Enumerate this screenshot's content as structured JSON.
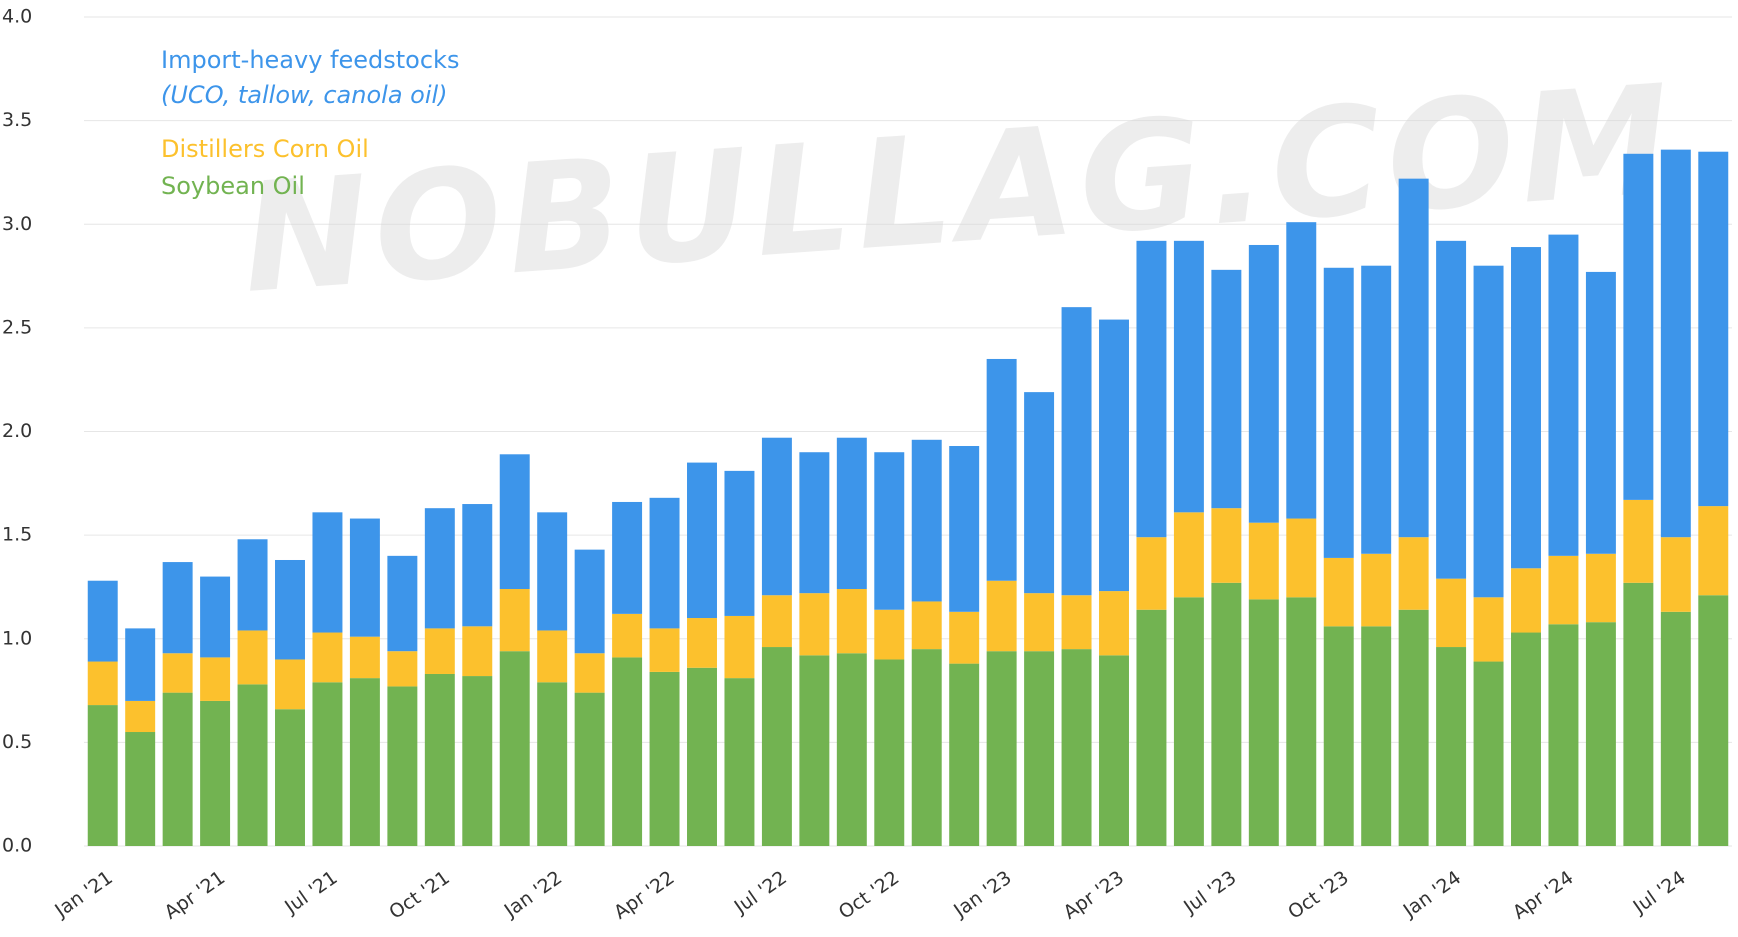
{
  "chart_data": {
    "type": "stacked_bar",
    "watermark": "NOBULLAG.COM",
    "categories": [
      "Jan '21",
      null,
      null,
      "Apr '21",
      null,
      null,
      "Jul '21",
      null,
      null,
      "Oct '21",
      null,
      null,
      "Jan '22",
      null,
      null,
      "Apr '22",
      null,
      null,
      "Jul '22",
      null,
      null,
      "Oct '22",
      null,
      null,
      "Jan '23",
      null,
      null,
      "Apr '23",
      null,
      null,
      "Jul '23",
      null,
      null,
      "Oct '23",
      null,
      null,
      "Jan '24",
      null,
      null,
      "Apr '24",
      null,
      null,
      "Jul '24",
      null
    ],
    "series": [
      {
        "name": "Soybean Oil",
        "color": "#72b351",
        "values": [
          0.68,
          0.55,
          0.74,
          0.7,
          0.78,
          0.66,
          0.79,
          0.81,
          0.77,
          0.83,
          0.82,
          0.94,
          0.79,
          0.74,
          0.91,
          0.84,
          0.86,
          0.81,
          0.96,
          0.92,
          0.93,
          0.9,
          0.95,
          0.88,
          0.94,
          0.94,
          0.95,
          0.92,
          1.14,
          1.2,
          1.27,
          1.19,
          1.2,
          1.06,
          1.06,
          1.14,
          0.96,
          0.89,
          1.03,
          1.07,
          1.08,
          1.27,
          1.13,
          1.21
        ]
      },
      {
        "name": "Distillers Corn Oil",
        "color": "#fcc12d",
        "values": [
          0.21,
          0.15,
          0.19,
          0.21,
          0.26,
          0.24,
          0.24,
          0.2,
          0.17,
          0.22,
          0.24,
          0.3,
          0.25,
          0.19,
          0.21,
          0.21,
          0.24,
          0.3,
          0.25,
          0.3,
          0.31,
          0.24,
          0.23,
          0.25,
          0.34,
          0.28,
          0.26,
          0.31,
          0.35,
          0.41,
          0.36,
          0.37,
          0.38,
          0.33,
          0.35,
          0.35,
          0.33,
          0.31,
          0.31,
          0.33,
          0.33,
          0.4,
          0.36,
          0.43
        ]
      },
      {
        "name": "Import-heavy feedstocks",
        "color": "#3d95ea",
        "values": [
          0.39,
          0.35,
          0.44,
          0.39,
          0.44,
          0.48,
          0.58,
          0.57,
          0.46,
          0.58,
          0.59,
          0.65,
          0.57,
          0.5,
          0.54,
          0.63,
          0.75,
          0.7,
          0.76,
          0.68,
          0.73,
          0.76,
          0.78,
          0.8,
          1.07,
          0.97,
          1.39,
          1.31,
          1.43,
          1.31,
          1.15,
          1.34,
          1.43,
          1.4,
          1.39,
          1.73,
          1.63,
          1.6,
          1.55,
          1.55,
          1.36,
          1.67,
          1.87,
          1.71
        ]
      }
    ],
    "annotations": [
      "(UCO, tallow, canola oil)"
    ],
    "ylim": [
      0,
      4
    ],
    "yticks": [
      {
        "value": 0,
        "label": "0.0"
      },
      0.5,
      {
        "value": 1,
        "label": "1.0"
      },
      1.5,
      {
        "value": 2,
        "label": "2.0"
      },
      2.5,
      {
        "value": 3,
        "label": "3.0"
      },
      3.5,
      {
        "value": 4,
        "label": "4.0"
      }
    ],
    "grid": true
  }
}
